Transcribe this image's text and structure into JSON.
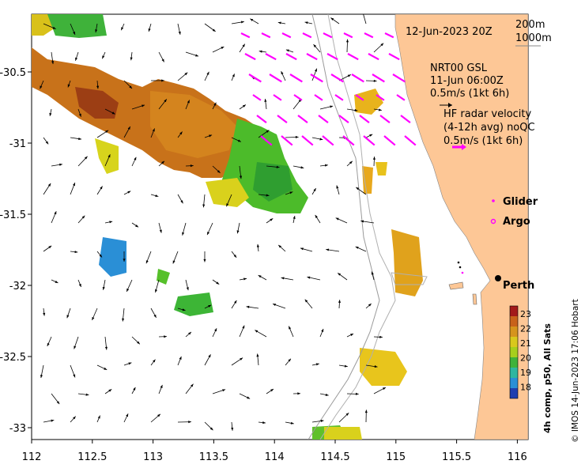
{
  "map": {
    "date_label": "12-Jun-2023 20Z",
    "isobaths": [
      "200m",
      "1000m"
    ],
    "gsl_title": "NRT00 GSL",
    "gsl_date": "11-Jun 06:00Z",
    "gsl_scale": "0.5m/s (1kt 6h)",
    "radar_title": "HF radar velocity",
    "radar_avg": "(4-12h avg) noQC",
    "radar_scale": "0.5m/s (1kt 6h)",
    "legend": {
      "glider": "Glider",
      "argo": "Argo"
    },
    "city": "Perth",
    "credit": "© IMOS 14-Jun-2023 17:06 Hobart",
    "colorbar_title": "4h comp, p50, All Sats",
    "colorbar_ticks": [
      "23",
      "22",
      "21",
      "20",
      "19",
      "18"
    ],
    "x_ticks": [
      "112",
      "112.5",
      "113",
      "113.5",
      "114",
      "114.5",
      "115",
      "115.5",
      "116"
    ],
    "y_ticks": [
      "-30.5",
      "-31",
      "-31.5",
      "-32",
      "-32.5",
      "-33"
    ],
    "colors": {
      "land": "#fdc796",
      "glider": "#ff00ff",
      "radar_arrow": "#ff00ff"
    }
  }
}
